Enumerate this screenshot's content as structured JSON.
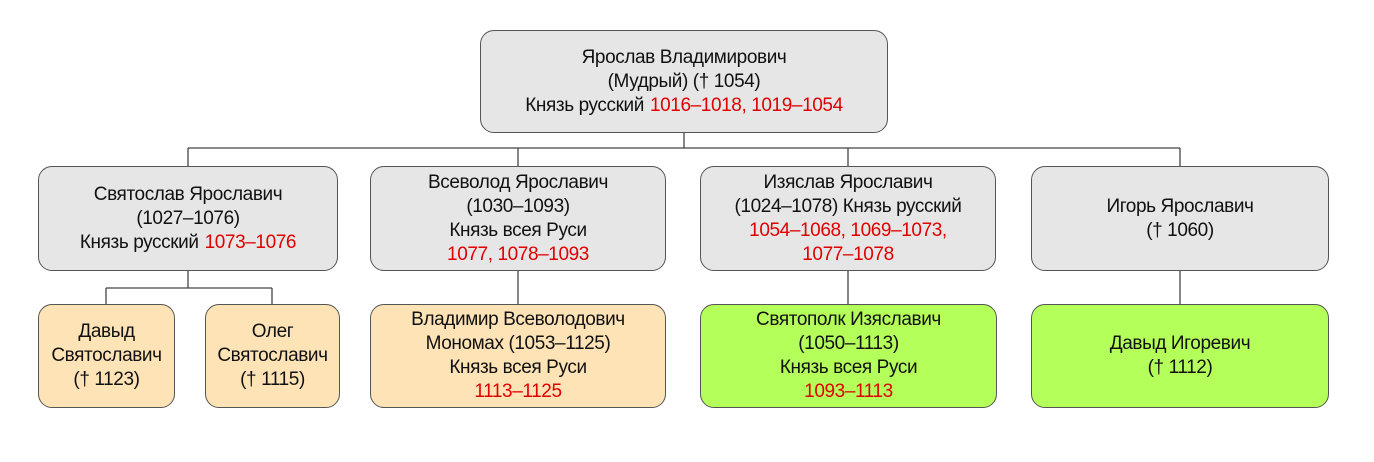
{
  "nodes": [
    {
      "fill": "#e6e6e6",
      "lines": [
        [
          {
            "text": "Ярослав Владимирович"
          }
        ],
        [
          {
            "text": "(Мудрый) († 1054)"
          }
        ],
        [
          {
            "text": "Князь русский"
          },
          {
            "text": "1016–1018, 1019–1054",
            "accent": true
          }
        ]
      ]
    },
    {
      "fill": "#e6e6e6",
      "lines": [
        [
          {
            "text": "Святослав Ярославич"
          }
        ],
        [
          {
            "text": "(1027–1076)"
          }
        ],
        [
          {
            "text": "Князь русский"
          },
          {
            "text": "1073–1076",
            "accent": true
          }
        ]
      ]
    },
    {
      "fill": "#e6e6e6",
      "lines": [
        [
          {
            "text": "Всеволод Ярославич"
          }
        ],
        [
          {
            "text": "(1030–1093)"
          }
        ],
        [
          {
            "text": "Князь всея Руси"
          }
        ],
        [
          {
            "text": "1077, 1078–1093",
            "accent": true
          }
        ]
      ]
    },
    {
      "fill": "#e6e6e6",
      "lines": [
        [
          {
            "text": "Изяслав Ярославич"
          }
        ],
        [
          {
            "text": "(1024–1078) Князь русский"
          }
        ],
        [
          {
            "text": "1054–1068, 1069–1073,",
            "accent": true
          }
        ],
        [
          {
            "text": "1077–1078",
            "accent": true
          }
        ]
      ]
    },
    {
      "fill": "#e6e6e6",
      "lines": [
        [
          {
            "text": "Игорь Ярославич"
          }
        ],
        [
          {
            "text": "(† 1060)"
          }
        ]
      ]
    },
    {
      "fill": "#fde3b6",
      "lines": [
        [
          {
            "text": "Давыд"
          }
        ],
        [
          {
            "text": "Святославич"
          }
        ],
        [
          {
            "text": "(† 1123)"
          }
        ]
      ]
    },
    {
      "fill": "#fde3b6",
      "lines": [
        [
          {
            "text": "Олег"
          }
        ],
        [
          {
            "text": "Святославич"
          }
        ],
        [
          {
            "text": "(† 1115)"
          }
        ]
      ]
    },
    {
      "fill": "#fde3b6",
      "lines": [
        [
          {
            "text": "Владимир Всеволодович"
          }
        ],
        [
          {
            "text": "Мономах (1053–1125)"
          }
        ],
        [
          {
            "text": "Князь всея Руси"
          }
        ],
        [
          {
            "text": "1113–1125",
            "accent": true
          }
        ]
      ]
    },
    {
      "fill": "#b5ff5a",
      "lines": [
        [
          {
            "text": "Святополк Изяславич"
          }
        ],
        [
          {
            "text": "(1050–1113)"
          }
        ],
        [
          {
            "text": "Князь всея Руси"
          }
        ],
        [
          {
            "text": "1093–1113",
            "accent": true
          }
        ]
      ]
    },
    {
      "fill": "#b5ff5a",
      "lines": [
        [
          {
            "text": "Давыд Игоревич"
          }
        ],
        [
          {
            "text": "(† 1112)"
          }
        ]
      ]
    }
  ]
}
